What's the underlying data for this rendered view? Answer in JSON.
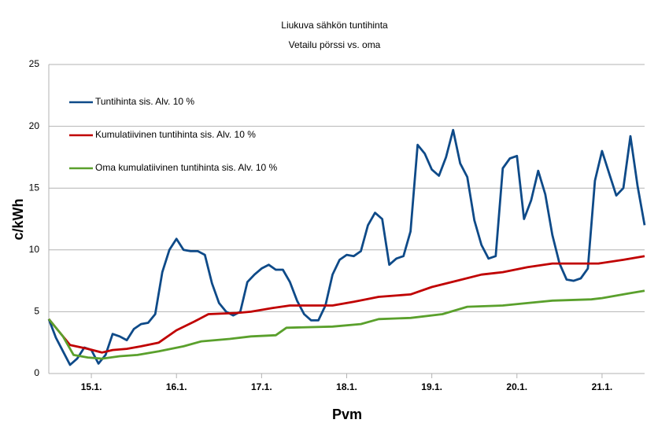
{
  "chart_data": {
    "type": "line",
    "title": "Liukuva sähkön tuntihinta",
    "subtitle": "Vetailu pörssi vs. oma",
    "y_label": "c/kWh",
    "x_label": "Pvm",
    "x": [
      0,
      2,
      4,
      6,
      8,
      10,
      12,
      14,
      16,
      18,
      20,
      22,
      24,
      26,
      28,
      30,
      32,
      34,
      36,
      38,
      40,
      42,
      44,
      46,
      48,
      50,
      52,
      54,
      56,
      58,
      60,
      62,
      64,
      66,
      68,
      70,
      72,
      74,
      76,
      78,
      80,
      82,
      84,
      86,
      88,
      90,
      92,
      94,
      96,
      98,
      100,
      102,
      104,
      106,
      108,
      110,
      112,
      114,
      116,
      118,
      120,
      122,
      124,
      126,
      128,
      130,
      132,
      134,
      136,
      138,
      140,
      142,
      144,
      146,
      148,
      150,
      152,
      154,
      156,
      158,
      160,
      162,
      164,
      166,
      168
    ],
    "series": [
      {
        "name": "Tuntihinta sis. Alv. 10 %",
        "color": "#0e4a88",
        "values": [
          4.4,
          2.9,
          1.8,
          0.7,
          1.2,
          2.1,
          1.9,
          0.8,
          1.5,
          3.2,
          3.0,
          2.7,
          3.6,
          4.0,
          4.1,
          4.8,
          8.2,
          10.0,
          10.9,
          10.0,
          9.9,
          9.9,
          9.6,
          7.3,
          5.7,
          5.0,
          4.7,
          5.0,
          7.4,
          8.0,
          8.5,
          8.8,
          8.4,
          8.4,
          7.4,
          5.9,
          4.8,
          4.3,
          4.3,
          5.5,
          8.0,
          9.2,
          9.6,
          9.5,
          9.9,
          12.0,
          13.0,
          12.5,
          8.8,
          9.3,
          9.5,
          11.5,
          18.5,
          17.8,
          16.5,
          16.0,
          17.5,
          19.7,
          17.0,
          15.9,
          12.4,
          10.4,
          9.3,
          9.5,
          16.6,
          17.4,
          17.6,
          12.5,
          14.0,
          16.4,
          14.5,
          11.2,
          8.9,
          7.6,
          7.5,
          7.7,
          8.5,
          15.6,
          18.0,
          16.2,
          14.4,
          15.0,
          19.2,
          15.2,
          12.0
        ]
      },
      {
        "name": "Kumulatiivinen tuntihinta sis. Alv. 10 %",
        "color": "#c00000",
        "x": [
          0,
          6,
          11,
          15,
          18,
          22,
          26,
          31,
          36,
          41,
          45,
          53,
          57,
          63,
          68,
          75,
          80,
          86,
          93,
          102,
          108,
          115,
          122,
          128,
          135,
          142,
          148,
          155,
          162,
          168
        ],
        "values": [
          4.4,
          2.3,
          2.0,
          1.7,
          1.9,
          2.0,
          2.2,
          2.5,
          3.5,
          4.2,
          4.8,
          4.9,
          5.0,
          5.3,
          5.5,
          5.5,
          5.5,
          5.8,
          6.2,
          6.4,
          7.0,
          7.5,
          8.0,
          8.2,
          8.6,
          8.9,
          8.9,
          8.9,
          9.2,
          9.5
        ]
      },
      {
        "name": "Oma kumulatiivinen tuntihinta sis. Alv. 10 %",
        "color": "#5aa02c",
        "x": [
          0,
          4,
          7,
          11,
          15,
          20,
          25,
          31,
          38,
          43,
          51,
          57,
          64,
          67,
          80,
          88,
          93,
          102,
          111,
          118,
          128,
          135,
          142,
          153,
          156,
          164,
          168
        ],
        "values": [
          4.4,
          3.0,
          1.5,
          1.3,
          1.2,
          1.4,
          1.5,
          1.8,
          2.2,
          2.6,
          2.8,
          3.0,
          3.1,
          3.7,
          3.8,
          4.0,
          4.4,
          4.5,
          4.8,
          5.4,
          5.5,
          5.7,
          5.9,
          6.0,
          6.1,
          6.5,
          6.7
        ]
      }
    ],
    "xlim": [
      0,
      168
    ],
    "xticks": [
      {
        "value": 12,
        "label": "15.1."
      },
      {
        "value": 36,
        "label": "16.1."
      },
      {
        "value": 60,
        "label": "17.1."
      },
      {
        "value": 84,
        "label": "18.1."
      },
      {
        "value": 108,
        "label": "19.1."
      },
      {
        "value": 132,
        "label": "20.1."
      },
      {
        "value": 156,
        "label": "21.1."
      }
    ],
    "ylim": [
      0,
      25
    ],
    "yticks": [
      0,
      5,
      10,
      15,
      20,
      25
    ],
    "grid": true,
    "legend": "upper left"
  }
}
